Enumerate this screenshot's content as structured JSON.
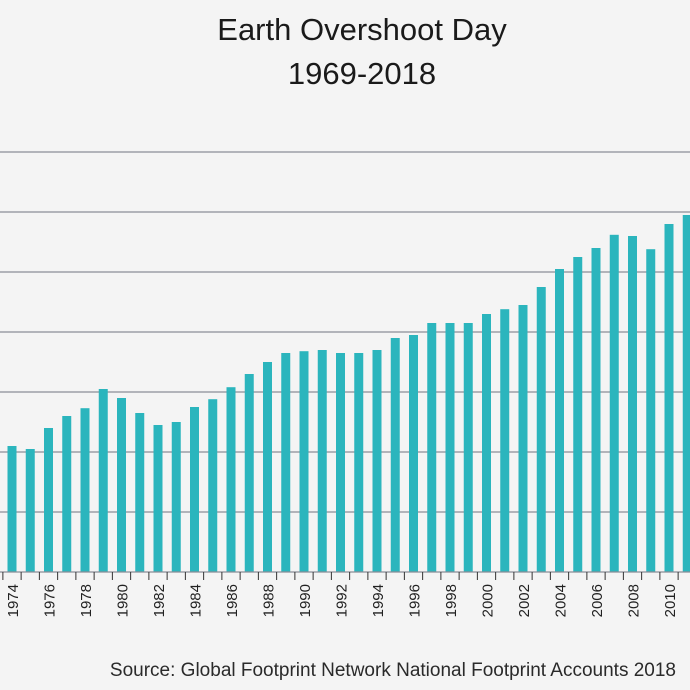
{
  "chart_data": {
    "type": "bar",
    "title_line1": "Earth Overshoot Day",
    "title_line2": "1969-2018",
    "source": "Source: Global Footprint Network National Footprint Accounts 2018",
    "color": "#2bb5bd",
    "gridline_color": "#8a8d96",
    "background": "#f4f4f4",
    "years": [
      1974,
      1975,
      1976,
      1977,
      1978,
      1979,
      1980,
      1981,
      1982,
      1983,
      1984,
      1985,
      1986,
      1987,
      1988,
      1989,
      1990,
      1991,
      1992,
      1993,
      1994,
      1995,
      1996,
      1997,
      1998,
      1999,
      2000,
      2001,
      2002,
      2003,
      2004,
      2005,
      2006,
      2007,
      2008,
      2009,
      2010,
      2011
    ],
    "tick_labels": [
      "1974",
      "1976",
      "1978",
      "1980",
      "1982",
      "1984",
      "1986",
      "1988",
      "1990",
      "1992",
      "1994",
      "1996",
      "1998",
      "2000",
      "2002",
      "2004",
      "2006",
      "2008",
      "2010"
    ],
    "values": [
      2.1,
      2.05,
      2.4,
      2.6,
      2.73,
      3.05,
      2.9,
      2.65,
      2.45,
      2.5,
      2.75,
      2.88,
      3.08,
      3.3,
      3.5,
      3.65,
      3.68,
      3.7,
      3.65,
      3.65,
      3.7,
      3.9,
      3.95,
      4.15,
      4.15,
      4.15,
      4.3,
      4.38,
      4.45,
      4.75,
      5.05,
      5.25,
      5.4,
      5.62,
      5.6,
      5.38,
      5.8,
      5.95
    ],
    "ylim": [
      0,
      7
    ],
    "gridlines": [
      1,
      2,
      3,
      4,
      5,
      6,
      7
    ],
    "grid": true
  }
}
